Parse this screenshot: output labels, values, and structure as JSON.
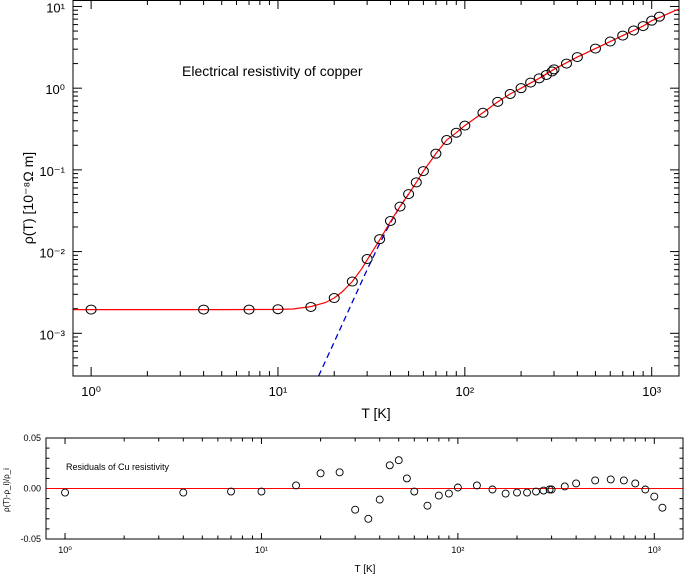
{
  "chart_data": [
    {
      "type": "scatter",
      "title": "",
      "annotation": "Electrical resistivity of copper",
      "xlabel": "T [K]",
      "ylabel": "ρ(T) [10⁻⁸Ω m]",
      "xscale": "log",
      "yscale": "log",
      "xlim": [
        0.8,
        1400
      ],
      "ylim": [
        0.0003,
        12
      ],
      "x_tick_labels": [
        "10⁰",
        "10¹",
        "10²",
        "10³"
      ],
      "y_tick_labels": [
        "10⁻³",
        "10⁻²",
        "10⁻¹",
        "10⁰",
        "10¹"
      ],
      "legend": "none",
      "grid": false,
      "series": [
        {
          "style": "open-circle markers",
          "color": "#000000",
          "x": [
            1,
            4,
            7,
            10,
            15,
            20,
            25,
            30,
            35,
            40,
            45,
            50,
            55,
            60,
            70,
            80,
            90,
            100,
            125,
            150,
            175,
            200,
            225,
            250,
            273,
            293,
            300,
            350,
            400,
            500,
            600,
            700,
            800,
            900,
            1000,
            1100
          ],
          "y": [
            0.00195,
            0.00195,
            0.00195,
            0.00197,
            0.0021,
            0.0027,
            0.0043,
            0.0081,
            0.0142,
            0.0237,
            0.0355,
            0.0505,
            0.0702,
            0.0966,
            0.158,
            0.232,
            0.285,
            0.348,
            0.5,
            0.68,
            0.85,
            1.0,
            1.17,
            1.32,
            1.45,
            1.6,
            1.7,
            2.0,
            2.4,
            3.05,
            3.72,
            4.4,
            5.08,
            5.75,
            6.7,
            7.5
          ]
        },
        {
          "style": "solid line",
          "color": "#ff0000",
          "x": [
            0.8,
            5,
            10,
            12,
            15,
            18,
            20,
            22,
            25,
            28,
            30,
            35,
            40,
            45,
            50,
            55,
            60,
            70,
            80,
            90,
            100,
            125,
            150,
            175,
            200,
            250,
            300,
            400,
            500,
            600,
            700,
            800,
            900,
            1000,
            1100,
            1200,
            1300,
            1400
          ],
          "y": [
            0.00195,
            0.00195,
            0.00196,
            0.00198,
            0.00212,
            0.00238,
            0.0027,
            0.0032,
            0.0043,
            0.0061,
            0.0079,
            0.0138,
            0.0233,
            0.0355,
            0.0505,
            0.0702,
            0.0966,
            0.158,
            0.232,
            0.285,
            0.348,
            0.5,
            0.68,
            0.85,
            1.0,
            1.32,
            1.7,
            2.4,
            3.05,
            3.72,
            4.4,
            5.08,
            5.75,
            6.7,
            7.3,
            8.0,
            8.7,
            9.3
          ]
        },
        {
          "style": "dashed line",
          "color": "#0000cc",
          "x": [
            16.5,
            20,
            25,
            30,
            35,
            40,
            45,
            50
          ],
          "y": [
            0.0003,
            0.00078,
            0.0024,
            0.006,
            0.0125,
            0.0226,
            0.0355,
            0.0505
          ]
        }
      ]
    },
    {
      "type": "scatter",
      "title": "",
      "annotation": "Residuals of Cu resistivity",
      "xlabel": "T [K]",
      "ylabel": "ρ(T)-ρ_i)/ρ_i",
      "xscale": "log",
      "xlim": [
        0.8,
        1400
      ],
      "ylim": [
        -0.05,
        0.05
      ],
      "x_tick_labels": [
        "10⁰",
        "10¹",
        "10²",
        "10³"
      ],
      "y_tick_labels": [
        "0.05",
        "0.00",
        "-0.05"
      ],
      "legend": "none",
      "grid": false,
      "reference_line": {
        "y": 0,
        "color": "#ff0000"
      },
      "series": [
        {
          "style": "open-circle markers",
          "color": "#000000",
          "x": [
            1,
            4,
            7,
            10,
            15,
            20,
            25,
            30,
            35,
            40,
            45,
            50,
            55,
            60,
            70,
            80,
            90,
            100,
            125,
            150,
            175,
            200,
            225,
            250,
            273,
            293,
            300,
            350,
            400,
            500,
            600,
            700,
            800,
            900,
            1000,
            1100
          ],
          "y": [
            -0.004,
            -0.004,
            -0.003,
            -0.003,
            0.003,
            0.015,
            0.016,
            -0.021,
            -0.03,
            -0.011,
            0.023,
            0.028,
            0.01,
            -0.003,
            -0.017,
            -0.007,
            -0.005,
            0.001,
            0.003,
            -0.001,
            -0.005,
            -0.004,
            -0.004,
            -0.003,
            -0.002,
            -0.001,
            -0.001,
            0.002,
            0.005,
            0.008,
            0.009,
            0.008,
            0.005,
            -0.001,
            -0.008,
            -0.019
          ]
        }
      ]
    }
  ]
}
